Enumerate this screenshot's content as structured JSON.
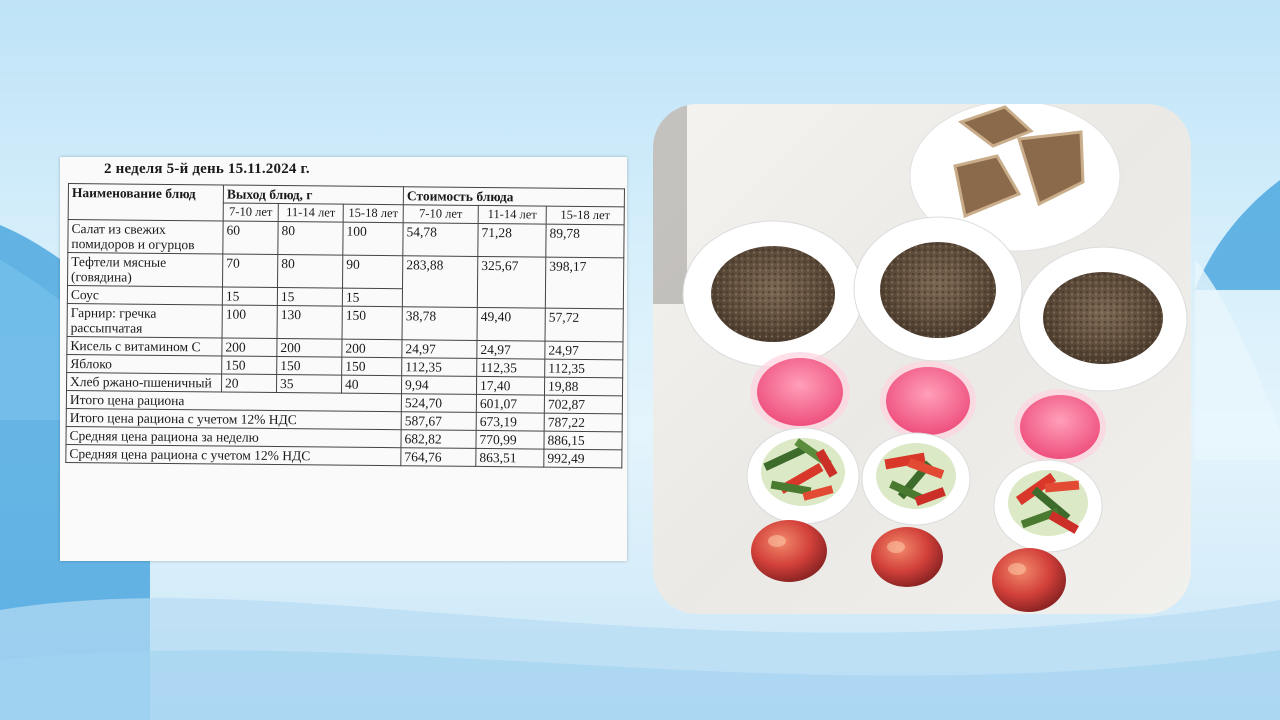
{
  "document": {
    "title": "2 неделя 5-й день  15.11.2024 г.",
    "headers": {
      "dish": "Наименование блюд",
      "yield": "Выход блюд, г",
      "cost": "Стоимость блюда",
      "age_groups": [
        "7-10 лет",
        "11-14 лет",
        "15-18 лет"
      ]
    },
    "rows": [
      {
        "name": "Салат из свежих помидоров и огурцов",
        "yield": [
          "60",
          "80",
          "100"
        ],
        "cost": [
          "54,78",
          "71,28",
          "89,78"
        ]
      },
      {
        "name": "Тефтели мясные (говядина)",
        "yield": [
          "70",
          "80",
          "90"
        ],
        "cost": [
          "283,88",
          "325,67",
          "398,17"
        ]
      },
      {
        "name": "Соус",
        "yield": [
          "15",
          "15",
          "15"
        ],
        "cost": [
          "",
          "",
          ""
        ]
      },
      {
        "name": "Гарнир: гречка рассыпчатая",
        "yield": [
          "100",
          "130",
          "150"
        ],
        "cost": [
          "38,78",
          "49,40",
          "57,72"
        ]
      },
      {
        "name": "Кисель с витамином С",
        "yield": [
          "200",
          "200",
          "200"
        ],
        "cost": [
          "24,97",
          "24,97",
          "24,97"
        ]
      },
      {
        "name": "Яблоко",
        "yield": [
          "150",
          "150",
          "150"
        ],
        "cost": [
          "112,35",
          "112,35",
          "112,35"
        ]
      },
      {
        "name": "Хлеб ржано-пшеничный",
        "yield": [
          "20",
          "35",
          "40"
        ],
        "cost": [
          "9,94",
          "17,40",
          "19,88"
        ]
      }
    ],
    "totals": [
      {
        "label": "Итого цена рациона",
        "values": [
          "524,70",
          "601,07",
          "702,87"
        ]
      },
      {
        "label": "Итого цена рациона с учетом 12% НДС",
        "values": [
          "587,67",
          "673,19",
          "787,22"
        ]
      },
      {
        "label": "Средняя цена рациона за неделю",
        "values": [
          "682,82",
          "770,99",
          "886,15"
        ]
      },
      {
        "label": "Средняя цена рациона с учетом 12% НДС",
        "values": [
          "764,76",
          "863,51",
          "992,49"
        ]
      }
    ]
  },
  "colors": {
    "background": "#cfeaf8",
    "accent_wave": "#3a9bd8",
    "kissel": "#f06a8e",
    "buckwheat": "#6b5a48"
  }
}
